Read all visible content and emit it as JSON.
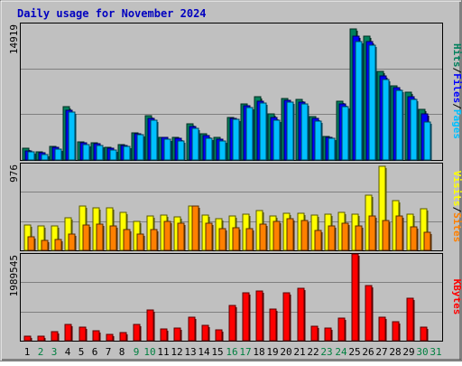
{
  "chart_data": {
    "type": "bar",
    "title": "Daily usage for November 2024",
    "categories": [
      "1",
      "2",
      "3",
      "4",
      "5",
      "6",
      "7",
      "8",
      "9",
      "10",
      "11",
      "12",
      "13",
      "14",
      "15",
      "16",
      "17",
      "18",
      "19",
      "20",
      "21",
      "22",
      "23",
      "24",
      "25",
      "26",
      "27",
      "28",
      "29",
      "30",
      "31"
    ],
    "weekend_days": [
      "2",
      "3",
      "9",
      "10",
      "16",
      "17",
      "23",
      "24",
      "30",
      "31"
    ],
    "panels": [
      {
        "id": "hits",
        "ymax": 14919,
        "ymax_label": "14919",
        "right_label_parts": [
          "Pages",
          "/",
          "Files",
          "/",
          "Hits"
        ],
        "series": [
          {
            "name": "Hits",
            "color": "#00805c",
            "values": [
              1250,
              900,
              1530,
              5860,
              2030,
              1900,
              1430,
              1730,
              2990,
              4860,
              2530,
              2460,
              3970,
              2850,
              2460,
              4720,
              6170,
              6940,
              5030,
              6780,
              6670,
              4780,
              2560,
              6480,
              14400,
              13650,
              9710,
              8170,
              7430,
              5540,
              0
            ]
          },
          {
            "name": "Files",
            "color": "#0000ff",
            "values": [
              1030,
              780,
              1350,
              5430,
              1900,
              1780,
              1320,
              1610,
              2880,
              4560,
              2460,
              2340,
              3690,
              2660,
              2290,
              4600,
              5950,
              6490,
              4700,
              6540,
              6410,
              4550,
              2470,
              6150,
              13600,
              13020,
              9280,
              7930,
              6940,
              5100,
              0
            ]
          },
          {
            "name": "Pages",
            "color": "#00c0ff",
            "values": [
              910,
              640,
              1190,
              5280,
              1720,
              1570,
              1100,
              1490,
              2760,
              4420,
              2290,
              2090,
              3450,
              2400,
              2090,
              4500,
              5780,
              6230,
              4420,
              6360,
              6180,
              4250,
              2360,
              5880,
              13010,
              12600,
              8840,
              7610,
              6650,
              4190,
              0
            ]
          }
        ]
      },
      {
        "id": "visits",
        "ymax": 976,
        "ymax_label": "976",
        "right_label_parts": [
          "Sites",
          "/",
          "Visits"
        ],
        "series": [
          {
            "name": "Visits",
            "color": "#ffff00",
            "values": [
              283,
              275,
              276,
              373,
              504,
              486,
              482,
              427,
              330,
              392,
              403,
              379,
              508,
              398,
              364,
              387,
              411,
              448,
              394,
              424,
              423,
              400,
              416,
              429,
              414,
              622,
              952,
              566,
              409,
              477,
              0
            ]
          },
          {
            "name": "Sites",
            "color": "#ff8000",
            "values": [
              152,
              117,
              124,
              180,
              284,
              294,
              279,
              235,
              188,
              233,
              328,
              307,
              499,
              309,
              244,
              252,
              244,
              297,
              327,
              357,
              337,
              221,
              281,
              307,
              275,
              395,
              335,
              392,
              269,
              205,
              0
            ]
          }
        ]
      },
      {
        "id": "kbytes",
        "ymax": 1989545,
        "ymax_label": "1989545",
        "right_label_parts": [
          "KBytes"
        ],
        "series": [
          {
            "name": "KBytes",
            "color": "#ff0000",
            "values": [
              96000,
              108000,
              210000,
              374000,
              304000,
              229000,
              149000,
              190000,
              377000,
              722000,
              279000,
              287000,
              549000,
              357000,
              257000,
              815000,
              1120000,
              1160000,
              729000,
              1110000,
              1210000,
              325000,
              298000,
              524000,
              2020000,
              1280000,
              540000,
              437000,
              983000,
              311000,
              0
            ]
          }
        ]
      }
    ]
  },
  "colors": {
    "background": "#c0c0c0",
    "border": "#808080",
    "title": "#0000c0",
    "weekday": "#000000",
    "weekend": "#008040",
    "grid": "#808080"
  }
}
